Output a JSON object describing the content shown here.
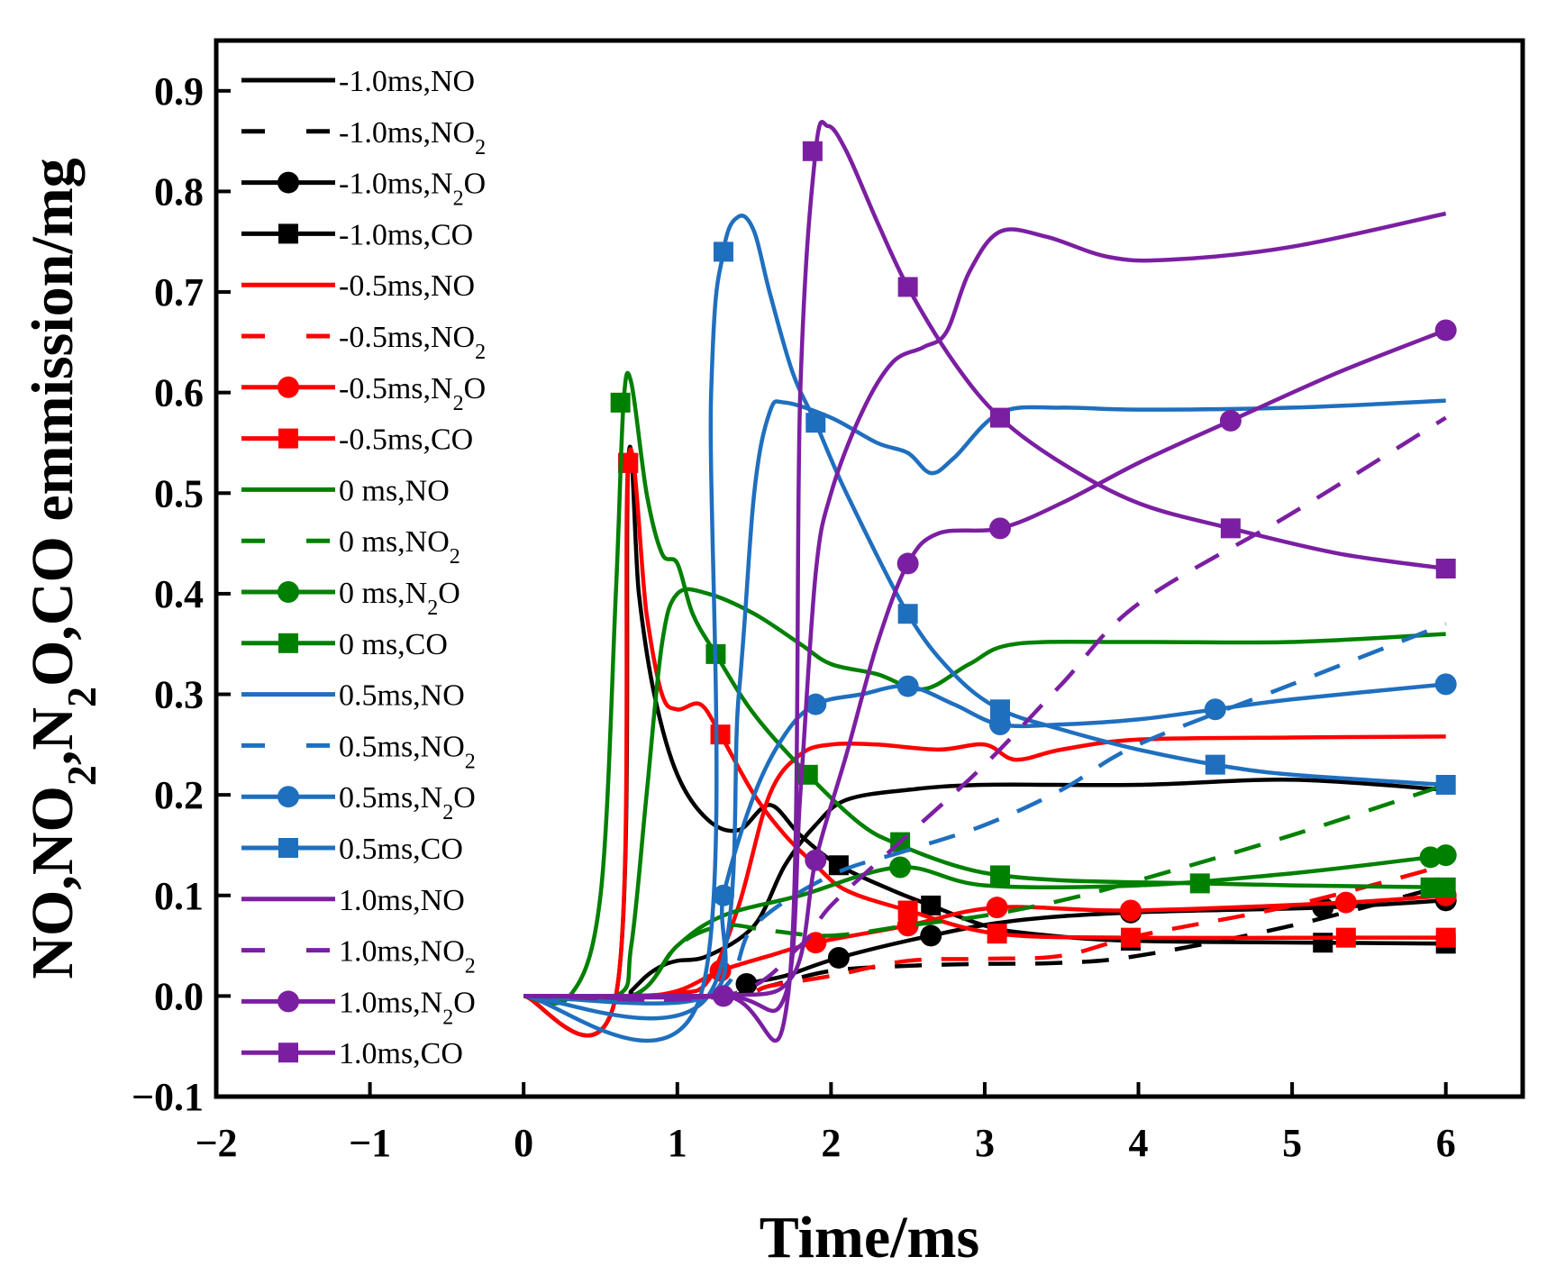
{
  "chart_data": {
    "type": "line",
    "title": "",
    "xlabel": "Time/ms",
    "ylabel_parts": [
      {
        "text": "NO,NO",
        "sub": false
      },
      {
        "text": "2",
        "sub": true
      },
      {
        "text": ",N",
        "sub": false
      },
      {
        "text": "2",
        "sub": true
      },
      {
        "text": "O,CO emmission/mg",
        "sub": false
      }
    ],
    "xlim": [
      -2,
      6.5
    ],
    "ylim": [
      -0.1,
      0.95
    ],
    "xticks": [
      -2,
      -1,
      0,
      1,
      2,
      3,
      4,
      5,
      6
    ],
    "xtick_labels": [
      "−2",
      "−1",
      "0",
      "1",
      "2",
      "3",
      "4",
      "5",
      "6"
    ],
    "yticks": [
      -0.1,
      0.0,
      0.1,
      0.2,
      0.3,
      0.4,
      0.5,
      0.6,
      0.7,
      0.8,
      0.9
    ],
    "ytick_labels": [
      "−0.1",
      "0.0",
      "0.1",
      "0.2",
      "0.3",
      "0.4",
      "0.5",
      "0.6",
      "0.7",
      "0.8",
      "0.9"
    ],
    "grid": false,
    "legend_position": "top-left",
    "series": [
      {
        "name": "-1.0ms,NO",
        "label": [
          {
            "t": "-1.0ms,NO"
          }
        ],
        "color": "#000000",
        "dash": "solid",
        "marker": "none",
        "x": [
          0,
          0.65,
          0.7,
          0.8,
          0.9,
          1.0,
          1.2,
          1.5,
          1.7,
          1.9,
          2.1,
          2.5,
          3.0,
          4.0,
          5.0,
          6.0
        ],
        "y": [
          0,
          0,
          0.005,
          0.02,
          0.03,
          0.035,
          0.04,
          0.07,
          0.13,
          0.17,
          0.195,
          0.205,
          0.21,
          0.21,
          0.215,
          0.205
        ]
      },
      {
        "name": "-1.0ms,NO2",
        "label": [
          {
            "t": "-1.0ms,NO"
          },
          {
            "t": "2",
            "sub": true
          }
        ],
        "color": "#000000",
        "dash": "dashed",
        "marker": "none",
        "x": [
          0,
          1.3,
          1.6,
          2.0,
          2.5,
          3.0,
          3.5,
          4.0,
          5.0,
          6.0
        ],
        "y": [
          0,
          0,
          0.01,
          0.025,
          0.03,
          0.032,
          0.033,
          0.04,
          0.07,
          0.11
        ]
      },
      {
        "name": "-1.0ms,N2O",
        "label": [
          {
            "t": "-1.0ms,N"
          },
          {
            "t": "2",
            "sub": true
          },
          {
            "t": "O"
          }
        ],
        "color": "#000000",
        "dash": "solid",
        "marker": "circle",
        "x": [
          0,
          1.3,
          1.45,
          1.7,
          2.05,
          2.65,
          3.2,
          3.95,
          5.2,
          6.0
        ],
        "y": [
          0,
          0,
          0.012,
          0.02,
          0.038,
          0.06,
          0.075,
          0.083,
          0.088,
          0.095
        ],
        "marker_x": [
          1.45,
          2.05,
          2.65,
          3.95,
          5.2,
          6.0
        ],
        "marker_y": [
          0.012,
          0.038,
          0.06,
          0.083,
          0.088,
          0.095
        ]
      },
      {
        "name": "-1.0ms,CO",
        "label": [
          {
            "t": "-1.0ms,CO"
          }
        ],
        "color": "#000000",
        "dash": "solid",
        "marker": "square",
        "x": [
          0,
          0.6,
          0.68,
          0.75,
          0.85,
          1.0,
          1.2,
          1.4,
          1.6,
          1.8,
          2.05,
          2.4,
          2.65,
          3.0,
          3.3,
          3.95,
          5.2,
          6.0
        ],
        "y": [
          0,
          0,
          0.53,
          0.4,
          0.3,
          0.22,
          0.175,
          0.165,
          0.19,
          0.16,
          0.13,
          0.105,
          0.09,
          0.07,
          0.062,
          0.055,
          0.053,
          0.052
        ],
        "marker_x": [
          0.68,
          2.05,
          2.65,
          3.95,
          5.2,
          6.0
        ],
        "marker_y": [
          0.53,
          0.13,
          0.09,
          0.055,
          0.053,
          0.052
        ]
      },
      {
        "name": "-0.5ms,NO",
        "label": [
          {
            "t": "-0.5ms,NO"
          }
        ],
        "color": "#ff0000",
        "dash": "solid",
        "marker": "none",
        "x": [
          0,
          0.65,
          1.0,
          1.2,
          1.4,
          1.6,
          1.8,
          2.0,
          2.3,
          2.7,
          3.0,
          3.2,
          3.5,
          4.0,
          5.0,
          6.0
        ],
        "y": [
          0,
          0,
          0.003,
          0.015,
          0.09,
          0.2,
          0.24,
          0.25,
          0.25,
          0.245,
          0.25,
          0.235,
          0.245,
          0.255,
          0.257,
          0.258
        ]
      },
      {
        "name": "-0.5ms,NO2",
        "label": [
          {
            "t": "-0.5ms,NO"
          },
          {
            "t": "2",
            "sub": true
          }
        ],
        "color": "#ff0000",
        "dash": "dashed",
        "marker": "none",
        "x": [
          0,
          1.3,
          1.6,
          2.0,
          2.5,
          3.0,
          3.5,
          4.0,
          5.0,
          6.0
        ],
        "y": [
          0,
          0,
          0.01,
          0.02,
          0.035,
          0.037,
          0.04,
          0.06,
          0.09,
          0.13
        ]
      },
      {
        "name": "-0.5ms,N2O",
        "label": [
          {
            "t": "-0.5ms,N"
          },
          {
            "t": "2",
            "sub": true
          },
          {
            "t": "O"
          }
        ],
        "color": "#ff0000",
        "dash": "solid",
        "marker": "circle",
        "x": [
          0,
          0.7,
          1.0,
          1.28,
          1.6,
          1.9,
          2.5,
          3.08,
          3.95,
          5.35,
          6.0
        ],
        "y": [
          0,
          0,
          0.005,
          0.025,
          0.04,
          0.053,
          0.07,
          0.088,
          0.085,
          0.093,
          0.1
        ],
        "marker_x": [
          1.28,
          1.9,
          2.5,
          3.08,
          3.95,
          5.35,
          6.0
        ],
        "marker_y": [
          0.025,
          0.053,
          0.07,
          0.088,
          0.085,
          0.093,
          0.1
        ]
      },
      {
        "name": "-0.5ms,CO",
        "label": [
          {
            "t": "-0.5ms,CO"
          }
        ],
        "color": "#ff0000",
        "dash": "solid",
        "marker": "square",
        "x": [
          0,
          0.6,
          0.68,
          0.8,
          0.9,
          1.0,
          1.15,
          1.28,
          1.5,
          1.7,
          1.9,
          2.1,
          2.5,
          3.08,
          3.95,
          5.35,
          6.0
        ],
        "y": [
          0,
          0,
          0.53,
          0.38,
          0.3,
          0.285,
          0.29,
          0.26,
          0.2,
          0.16,
          0.13,
          0.105,
          0.085,
          0.062,
          0.058,
          0.058,
          0.058
        ],
        "marker_x": [
          0.68,
          1.28,
          2.5,
          3.08,
          3.95,
          5.35,
          6.0
        ],
        "marker_y": [
          0.53,
          0.26,
          0.085,
          0.062,
          0.058,
          0.058,
          0.058
        ]
      },
      {
        "name": "0 ms,NO",
        "label": [
          {
            "t": "0 ms,NO"
          }
        ],
        "color": "#008000",
        "dash": "solid",
        "marker": "none",
        "x": [
          0,
          0.6,
          0.7,
          0.8,
          0.9,
          1.0,
          1.2,
          1.5,
          1.8,
          2.0,
          2.3,
          2.6,
          2.9,
          3.2,
          4.0,
          5.0,
          6.0
        ],
        "y": [
          0,
          0,
          0.05,
          0.2,
          0.35,
          0.4,
          0.4,
          0.38,
          0.35,
          0.33,
          0.32,
          0.305,
          0.33,
          0.35,
          0.352,
          0.352,
          0.36
        ]
      },
      {
        "name": "0 ms,NO2",
        "label": [
          {
            "t": "0 ms,NO"
          },
          {
            "t": "2",
            "sub": true
          }
        ],
        "color": "#008000",
        "dash": "dashed",
        "marker": "none",
        "x": [
          0,
          0.7,
          1.0,
          1.3,
          1.6,
          2.0,
          2.5,
          3.0,
          3.5,
          4.0,
          5.0,
          6.0
        ],
        "y": [
          0,
          0,
          0.05,
          0.07,
          0.065,
          0.06,
          0.07,
          0.08,
          0.095,
          0.115,
          0.16,
          0.21
        ]
      },
      {
        "name": "0 ms,N2O",
        "label": [
          {
            "t": "0 ms,N"
          },
          {
            "t": "2",
            "sub": true
          },
          {
            "t": "O"
          }
        ],
        "color": "#008000",
        "dash": "solid",
        "marker": "circle",
        "x": [
          0,
          0.7,
          1.0,
          1.3,
          1.8,
          2.45,
          3.0,
          4.0,
          5.0,
          5.9,
          6.0
        ],
        "y": [
          0,
          0,
          0.05,
          0.08,
          0.1,
          0.128,
          0.11,
          0.11,
          0.122,
          0.138,
          0.14
        ],
        "marker_x": [
          2.45,
          5.9,
          6.0
        ],
        "marker_y": [
          0.128,
          0.138,
          0.14
        ]
      },
      {
        "name": "0 ms,CO",
        "label": [
          {
            "t": "0 ms,CO"
          }
        ],
        "color": "#008000",
        "dash": "solid",
        "marker": "square",
        "x": [
          0,
          0.3,
          0.5,
          0.6,
          0.65,
          0.7,
          0.8,
          0.9,
          1.0,
          1.1,
          1.25,
          1.5,
          1.85,
          2.2,
          2.45,
          2.8,
          3.1,
          3.5,
          4.0,
          4.4,
          5.0,
          6.0
        ],
        "y": [
          0,
          0,
          0.1,
          0.4,
          0.59,
          0.61,
          0.5,
          0.44,
          0.43,
          0.38,
          0.34,
          0.28,
          0.22,
          0.17,
          0.15,
          0.13,
          0.12,
          0.115,
          0.113,
          0.112,
          0.11,
          0.108
        ],
        "marker_x": [
          0.63,
          1.25,
          1.85,
          2.45,
          3.1,
          4.4,
          5.9,
          6.0
        ],
        "marker_y": [
          0.59,
          0.34,
          0.22,
          0.153,
          0.12,
          0.112,
          0.108,
          0.108
        ]
      },
      {
        "name": "0.5ms,NO",
        "label": [
          {
            "t": "0.5ms,NO"
          }
        ],
        "color": "#1f6fbf",
        "dash": "solid",
        "marker": "none",
        "x": [
          0,
          1.2,
          1.4,
          1.5,
          1.6,
          1.7,
          2.0,
          2.3,
          2.5,
          2.65,
          2.8,
          3.1,
          3.5,
          4.0,
          5.0,
          6.0
        ],
        "y": [
          0,
          0,
          0.3,
          0.5,
          0.58,
          0.59,
          0.575,
          0.55,
          0.54,
          0.52,
          0.535,
          0.58,
          0.585,
          0.583,
          0.585,
          0.592
        ]
      },
      {
        "name": "0.5ms,NO2",
        "label": [
          {
            "t": "0.5ms,NO"
          },
          {
            "t": "2",
            "sub": true
          }
        ],
        "color": "#1f6fbf",
        "dash": "dashed",
        "marker": "none",
        "x": [
          0,
          1.2,
          1.5,
          2.0,
          2.5,
          3.0,
          3.5,
          4.0,
          5.0,
          6.0
        ],
        "y": [
          0,
          0,
          0.07,
          0.12,
          0.145,
          0.17,
          0.205,
          0.25,
          0.31,
          0.37
        ]
      },
      {
        "name": "0.5ms,N2O",
        "label": [
          {
            "t": "0.5ms,N"
          },
          {
            "t": "2",
            "sub": true
          },
          {
            "t": "O"
          }
        ],
        "color": "#1f6fbf",
        "dash": "solid",
        "marker": "circle",
        "x": [
          0,
          1.2,
          1.3,
          1.5,
          1.7,
          1.9,
          2.2,
          2.5,
          2.8,
          3.1,
          3.5,
          4.0,
          4.5,
          5.0,
          6.0
        ],
        "y": [
          0,
          0,
          0.1,
          0.2,
          0.26,
          0.29,
          0.3,
          0.308,
          0.29,
          0.27,
          0.27,
          0.275,
          0.285,
          0.295,
          0.31
        ],
        "marker_x": [
          1.3,
          1.9,
          2.5,
          3.1,
          4.5,
          6.0
        ],
        "marker_y": [
          0.1,
          0.29,
          0.308,
          0.27,
          0.285,
          0.31
        ]
      },
      {
        "name": "0.5ms,CO",
        "label": [
          {
            "t": "0.5ms,CO"
          }
        ],
        "color": "#1f6fbf",
        "dash": "solid",
        "marker": "square",
        "x": [
          0,
          1.15,
          1.22,
          1.3,
          1.4,
          1.5,
          1.6,
          1.75,
          1.9,
          2.1,
          2.5,
          2.8,
          3.1,
          3.5,
          4.0,
          4.5,
          5.0,
          6.0
        ],
        "y": [
          0,
          0,
          0.6,
          0.74,
          0.775,
          0.76,
          0.7,
          0.62,
          0.57,
          0.5,
          0.38,
          0.32,
          0.285,
          0.265,
          0.245,
          0.23,
          0.22,
          0.21
        ],
        "marker_x": [
          1.3,
          1.9,
          2.5,
          3.1,
          4.5,
          6.0
        ],
        "marker_y": [
          0.74,
          0.57,
          0.38,
          0.285,
          0.23,
          0.21
        ]
      },
      {
        "name": "1.0ms,NO",
        "label": [
          {
            "t": "1.0ms,NO"
          }
        ],
        "color": "#7b1fa2",
        "dash": "solid",
        "marker": "none",
        "x": [
          0,
          1.3,
          1.7,
          1.8,
          1.9,
          2.0,
          2.2,
          2.4,
          2.6,
          2.75,
          2.9,
          3.1,
          3.4,
          3.8,
          4.2,
          5.0,
          6.0
        ],
        "y": [
          0,
          0,
          0,
          0.2,
          0.42,
          0.5,
          0.58,
          0.63,
          0.645,
          0.66,
          0.72,
          0.76,
          0.755,
          0.735,
          0.732,
          0.745,
          0.778
        ]
      },
      {
        "name": "1.0ms,NO2",
        "label": [
          {
            "t": "1.0ms,NO"
          },
          {
            "t": "2",
            "sub": true
          }
        ],
        "color": "#7b1fa2",
        "dash": "dashed",
        "marker": "none",
        "x": [
          0,
          1.3,
          1.8,
          2.0,
          2.5,
          3.0,
          3.5,
          4.0,
          5.0,
          6.0
        ],
        "y": [
          0,
          0,
          0.05,
          0.09,
          0.16,
          0.23,
          0.31,
          0.39,
          0.48,
          0.575
        ]
      },
      {
        "name": "1.0ms,N2O",
        "label": [
          {
            "t": "1.0ms,N"
          },
          {
            "t": "2",
            "sub": true
          },
          {
            "t": "O"
          }
        ],
        "color": "#7b1fa2",
        "dash": "solid",
        "marker": "circle",
        "x": [
          0,
          1.3,
          1.75,
          1.9,
          2.1,
          2.3,
          2.5,
          2.7,
          3.1,
          3.5,
          4.0,
          4.6,
          5.3,
          6.0
        ],
        "y": [
          0,
          0,
          0.02,
          0.135,
          0.24,
          0.35,
          0.43,
          0.46,
          0.465,
          0.49,
          0.53,
          0.572,
          0.62,
          0.662
        ],
        "marker_x": [
          1.3,
          1.9,
          2.5,
          3.1,
          4.6,
          6.0
        ],
        "marker_y": [
          0,
          0.135,
          0.43,
          0.465,
          0.572,
          0.662
        ]
      },
      {
        "name": "1.0ms,CO",
        "label": [
          {
            "t": "1.0ms,CO"
          }
        ],
        "color": "#7b1fa2",
        "dash": "solid",
        "marker": "square",
        "x": [
          0,
          1.3,
          1.72,
          1.8,
          1.9,
          1.98,
          2.1,
          2.3,
          2.5,
          2.8,
          3.1,
          3.5,
          4.0,
          4.6,
          5.3,
          6.0
        ],
        "y": [
          0,
          0,
          0,
          0.6,
          0.84,
          0.865,
          0.84,
          0.77,
          0.705,
          0.63,
          0.575,
          0.53,
          0.49,
          0.465,
          0.44,
          0.425
        ],
        "marker_x": [
          1.88,
          2.5,
          3.1,
          4.6,
          6.0
        ],
        "marker_y": [
          0.84,
          0.705,
          0.575,
          0.465,
          0.425
        ]
      }
    ]
  }
}
